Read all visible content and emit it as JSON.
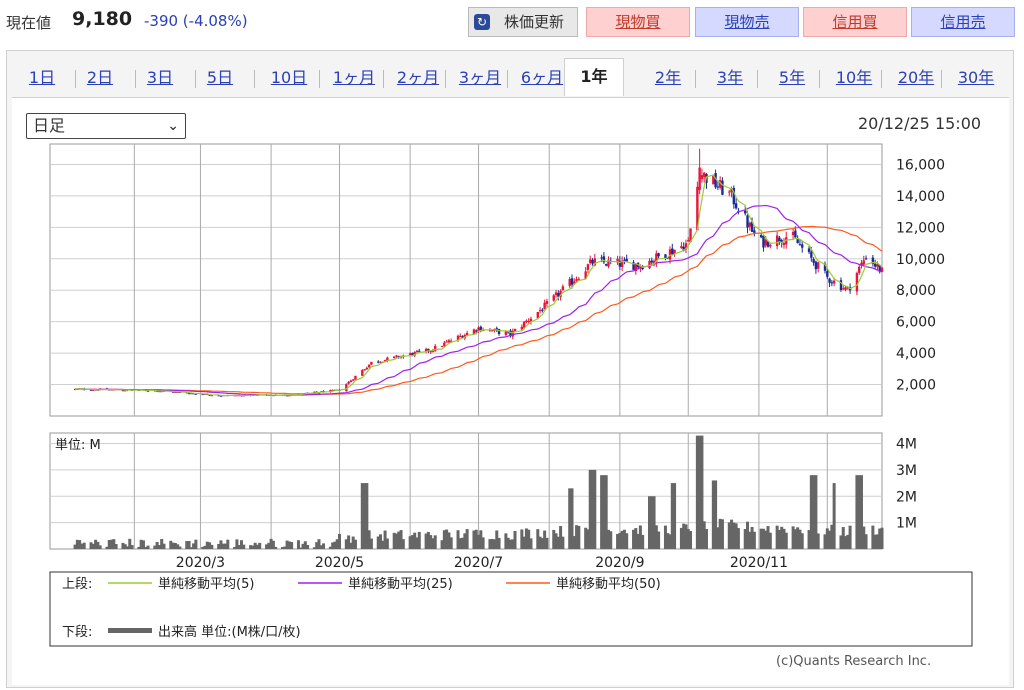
{
  "header": {
    "price_label": "現在値",
    "price_value": "9,180",
    "price_change": "-390 (-4.08%)",
    "refresh_label": "株価更新",
    "buttons": [
      "現物買",
      "現物売",
      "信用買",
      "信用売"
    ]
  },
  "tabs": [
    "1日",
    "2日",
    "3日",
    "5日",
    "10日",
    "1ヶ月",
    "2ヶ月",
    "3ヶ月",
    "6ヶ月",
    "1年",
    "2年",
    "3年",
    "5年",
    "10年",
    "20年",
    "30年"
  ],
  "active_tab": "1年",
  "select": {
    "value": "日足"
  },
  "timestamp": "20/12/25 15:00",
  "copyright": "(c)Quants Research Inc.",
  "colors": {
    "up": "#e8143c",
    "down": "#1a2a9a",
    "ma5": "#9acd32",
    "ma25": "#a020f0",
    "ma50": "#ff5a1e",
    "volume": "#666666"
  },
  "chart_data": {
    "type": "candlestick",
    "price_panel": {
      "y_ticks": [
        "16,000",
        "14,000",
        "12,000",
        "10,000",
        "8,000",
        "6,000",
        "4,000",
        "2,000"
      ],
      "ylim": [
        0,
        17300
      ],
      "x_range": [
        "2019/12/26",
        "2020/12/25"
      ],
      "anchors": [
        [
          "2020/01/10",
          1700
        ],
        [
          "2020/02/10",
          1620
        ],
        [
          "2020/03/10",
          1300
        ],
        [
          "2020/04/10",
          1350
        ],
        [
          "2020/05/01",
          1650
        ],
        [
          "2020/05/15",
          3400
        ],
        [
          "2020/06/10",
          4200
        ],
        [
          "2020/07/01",
          5600
        ],
        [
          "2020/07/15",
          5200
        ],
        [
          "2020/08/01",
          7200
        ],
        [
          "2020/08/20",
          9800
        ],
        [
          "2020/09/10",
          9600
        ],
        [
          "2020/10/01",
          11000
        ],
        [
          "2020/10/06",
          15500
        ],
        [
          "2020/10/20",
          14000
        ],
        [
          "2020/11/01",
          11000
        ],
        [
          "2020/11/15",
          11500
        ],
        [
          "2020/12/01",
          8800
        ],
        [
          "2020/12/10",
          8000
        ],
        [
          "2020/12/18",
          10200
        ],
        [
          "2020/12/25",
          9180
        ]
      ],
      "high_peak": {
        "date": "2020/10/06",
        "value": 17000
      }
    },
    "volume_panel": {
      "unit_label": "単位: M",
      "y_ticks": [
        "4M",
        "3M",
        "2M",
        "1M"
      ],
      "ylim": [
        0,
        4.4
      ],
      "spikes": [
        [
          "2020/05/12",
          2.5
        ],
        [
          "2020/08/10",
          2.3
        ],
        [
          "2020/08/20",
          3.0
        ],
        [
          "2020/08/25",
          2.8
        ],
        [
          "2020/09/15",
          2.0
        ],
        [
          "2020/09/25",
          2.5
        ],
        [
          "2020/10/06",
          4.3
        ],
        [
          "2020/10/12",
          2.6
        ],
        [
          "2020/11/25",
          2.8
        ],
        [
          "2020/12/05",
          2.5
        ],
        [
          "2020/12/15",
          2.8
        ]
      ]
    },
    "x_tick_labels": [
      {
        "date": "2020/03/01",
        "label": "2020/3"
      },
      {
        "date": "2020/05/01",
        "label": "2020/5"
      },
      {
        "date": "2020/07/01",
        "label": "2020/7"
      },
      {
        "date": "2020/09/01",
        "label": "2020/9"
      },
      {
        "date": "2020/11/01",
        "label": "2020/11"
      }
    ],
    "x_grid_dates": [
      "2020/02/01",
      "2020/04/01",
      "2020/06/01",
      "2020/08/01",
      "2020/10/01",
      "2020/12/01"
    ],
    "legend": {
      "upper_label": "上段:",
      "lower_label": "下段:",
      "items": [
        {
          "key": "ma5",
          "label": "単純移動平均(5)"
        },
        {
          "key": "ma25",
          "label": "単純移動平均(25)"
        },
        {
          "key": "ma50",
          "label": "単純移動平均(50)"
        }
      ],
      "volume_label": "出来高 単位:(M株/口/枚)"
    }
  }
}
